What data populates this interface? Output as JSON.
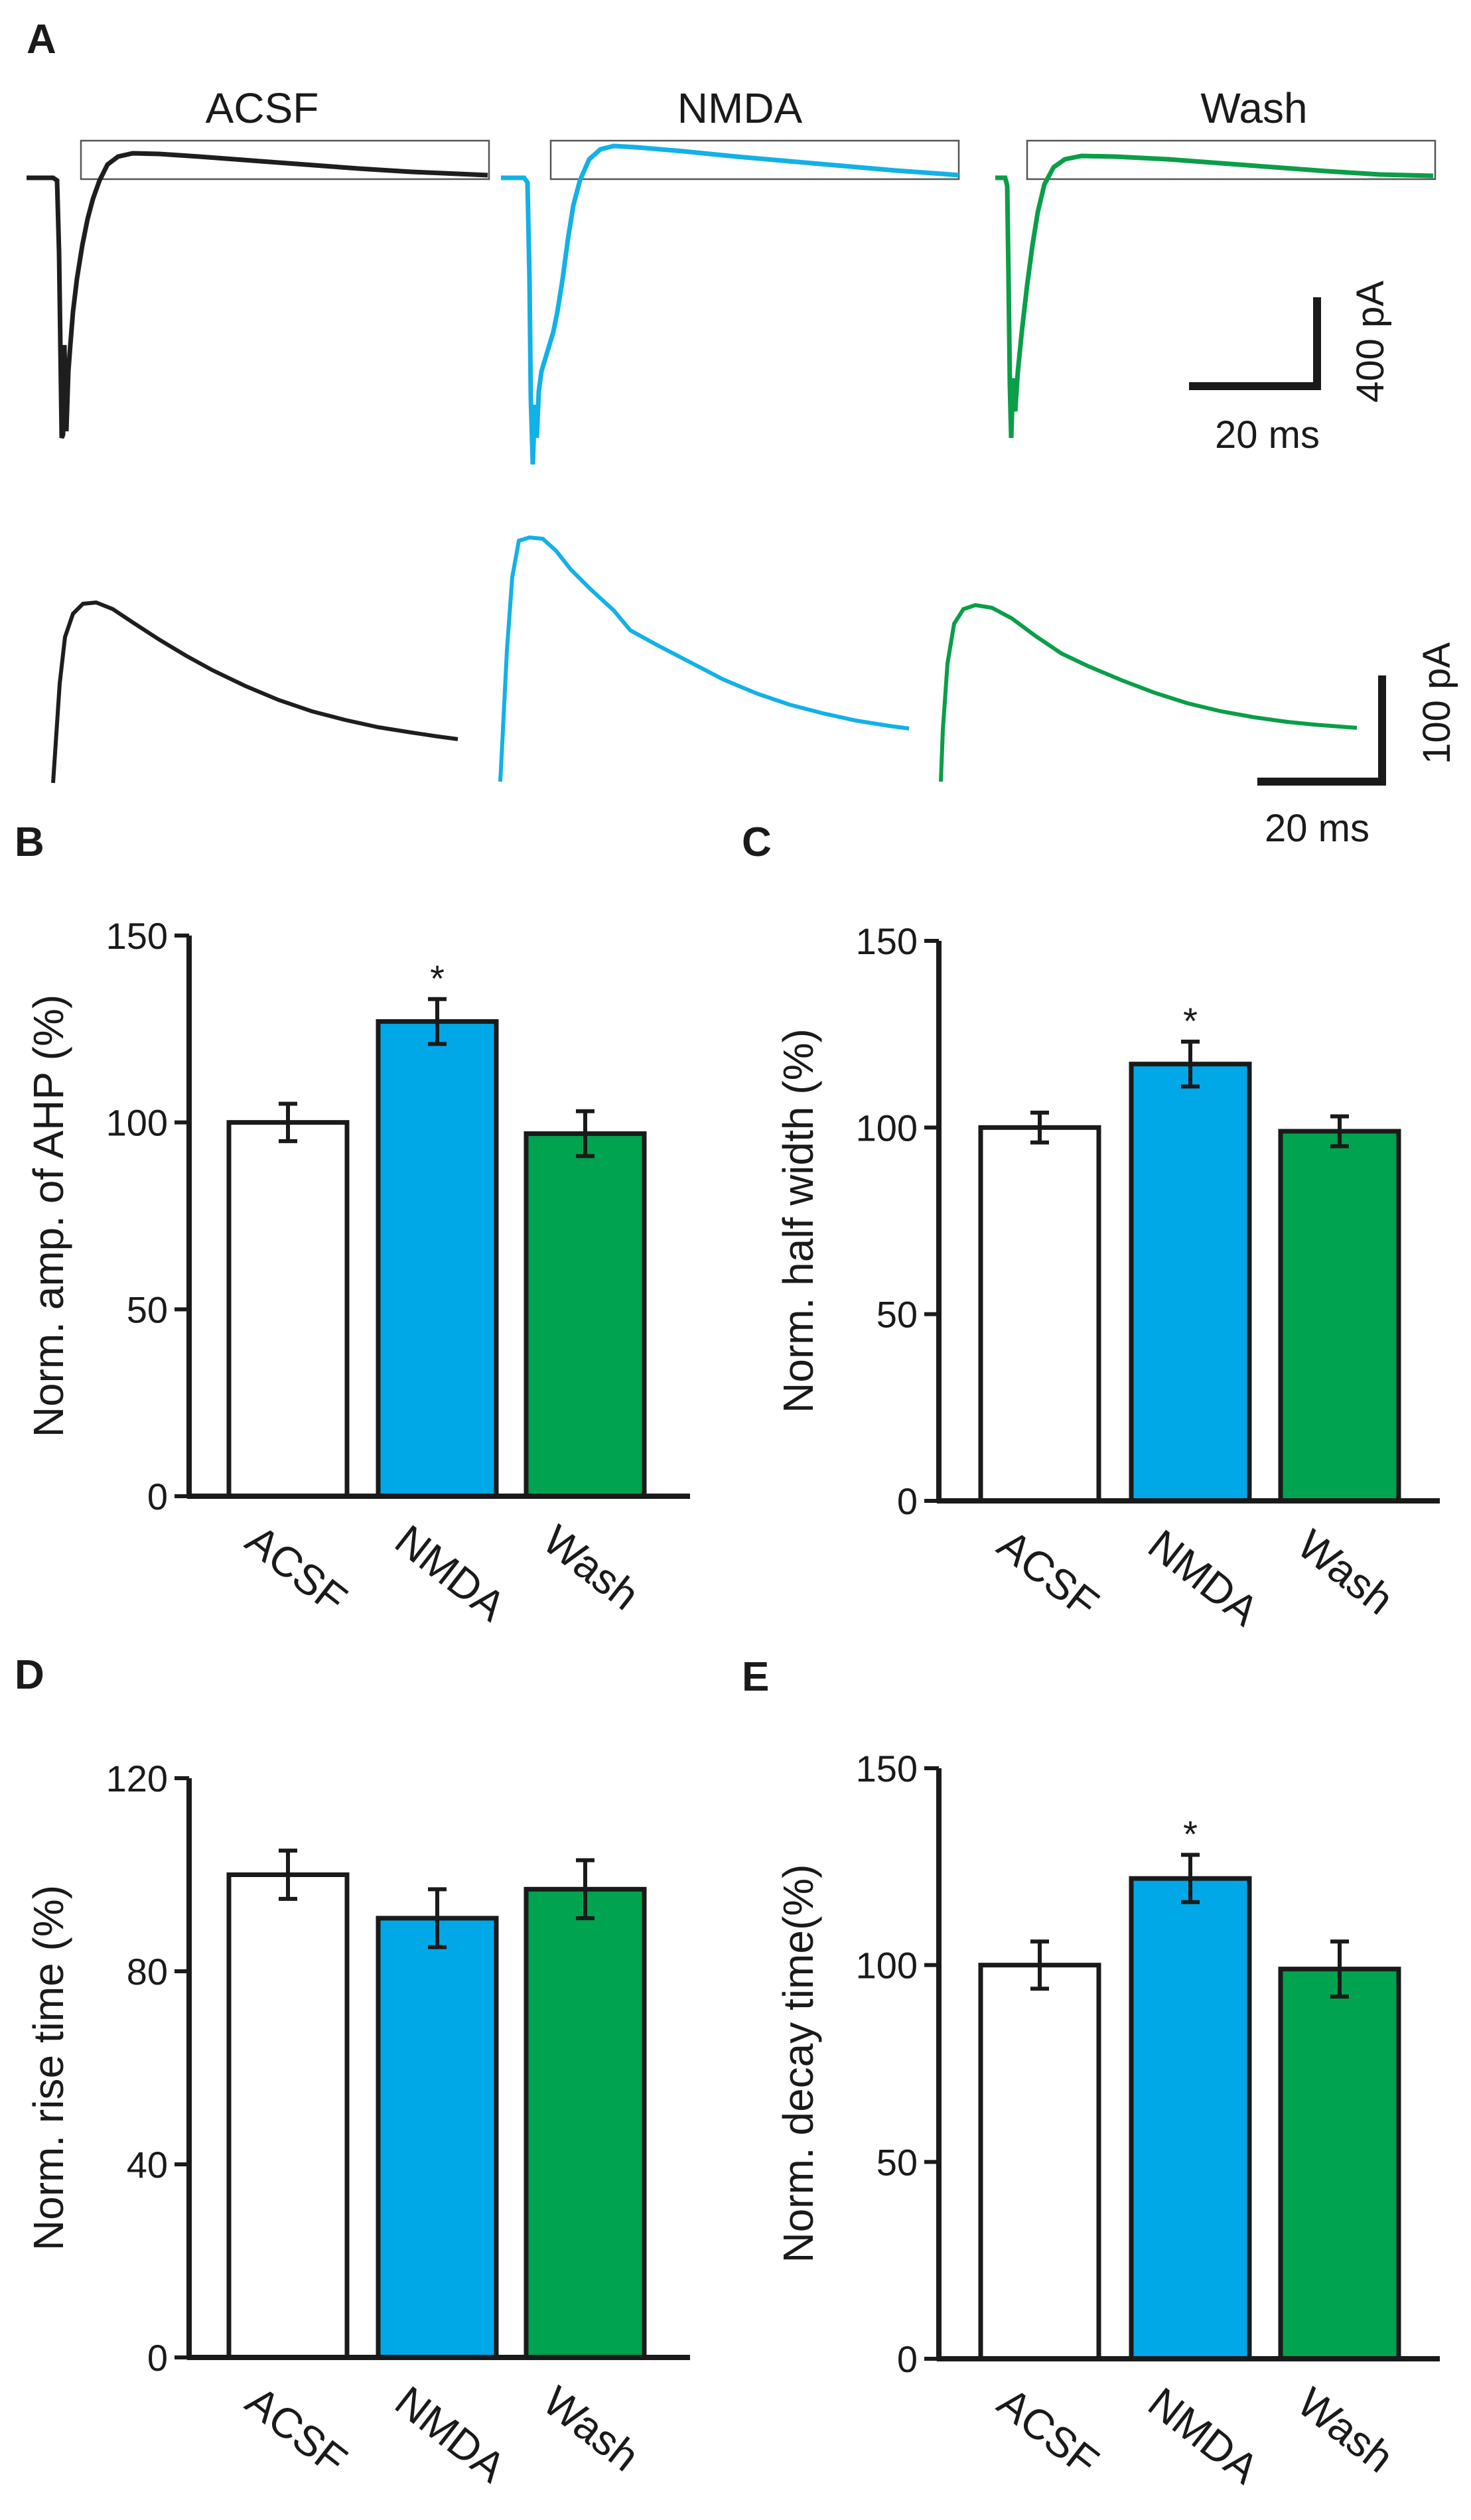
{
  "colors": {
    "acsf": "#ffffff",
    "nmda": "#00a8e8",
    "wash": "#00a34f",
    "acsf_trace": "#1e1e1e",
    "nmda_trace": "#12b1e6",
    "wash_trace": "#0a9e48",
    "axis": "#1a1a1a"
  },
  "panelA": {
    "letter": "A",
    "conditions": [
      "ACSF",
      "NMDA",
      "Wash"
    ],
    "scale_top": {
      "y_label": "400 pA",
      "x_label": "20 ms"
    },
    "scale_bottom": {
      "y_label": "100 pA",
      "x_label": "20 ms"
    }
  },
  "chart_data": [
    {
      "panel": "B",
      "type": "bar",
      "ylabel": "Norm. amp. of AHP (%)",
      "categories": [
        "ACSF",
        "NMDA",
        "Wash"
      ],
      "values": [
        100,
        127,
        97
      ],
      "errors": [
        5,
        6,
        6
      ],
      "significance": [
        "",
        "*",
        ""
      ],
      "ylim": [
        0,
        150
      ],
      "yticks": [
        0,
        50,
        100,
        150
      ],
      "ytick_labels": [
        "0",
        "50",
        "100",
        "150"
      ]
    },
    {
      "panel": "C",
      "type": "bar",
      "ylabel": "Norm. half width (%)",
      "categories": [
        "ACSF",
        "NMDA",
        "Wash"
      ],
      "values": [
        100,
        117,
        99
      ],
      "errors": [
        4,
        6,
        4
      ],
      "significance": [
        "",
        "*",
        ""
      ],
      "ylim": [
        0,
        150
      ],
      "yticks": [
        0,
        50,
        100,
        150
      ],
      "ytick_labels": [
        "0",
        "50",
        "100",
        "150"
      ]
    },
    {
      "panel": "D",
      "type": "bar",
      "ylabel": "Norm. rise time (%)",
      "categories": [
        "ACSF",
        "NMDA",
        "Wash"
      ],
      "values": [
        100,
        91,
        97
      ],
      "errors": [
        5,
        6,
        6
      ],
      "significance": [
        "",
        "",
        ""
      ],
      "ylim": [
        0,
        120
      ],
      "yticks": [
        0,
        40,
        80,
        120
      ],
      "ytick_labels": [
        "0",
        "40",
        "80",
        "120"
      ]
    },
    {
      "panel": "E",
      "type": "bar",
      "ylabel": "Norm. decay time(%)",
      "categories": [
        "ACSF",
        "NMDA",
        "Wash"
      ],
      "values": [
        100,
        122,
        99
      ],
      "errors": [
        6,
        6,
        7
      ],
      "significance": [
        "",
        "*",
        ""
      ],
      "ylim": [
        0,
        150
      ],
      "yticks": [
        0,
        50,
        100,
        150
      ],
      "ytick_labels": [
        "0",
        "50",
        "100",
        "150"
      ]
    }
  ]
}
